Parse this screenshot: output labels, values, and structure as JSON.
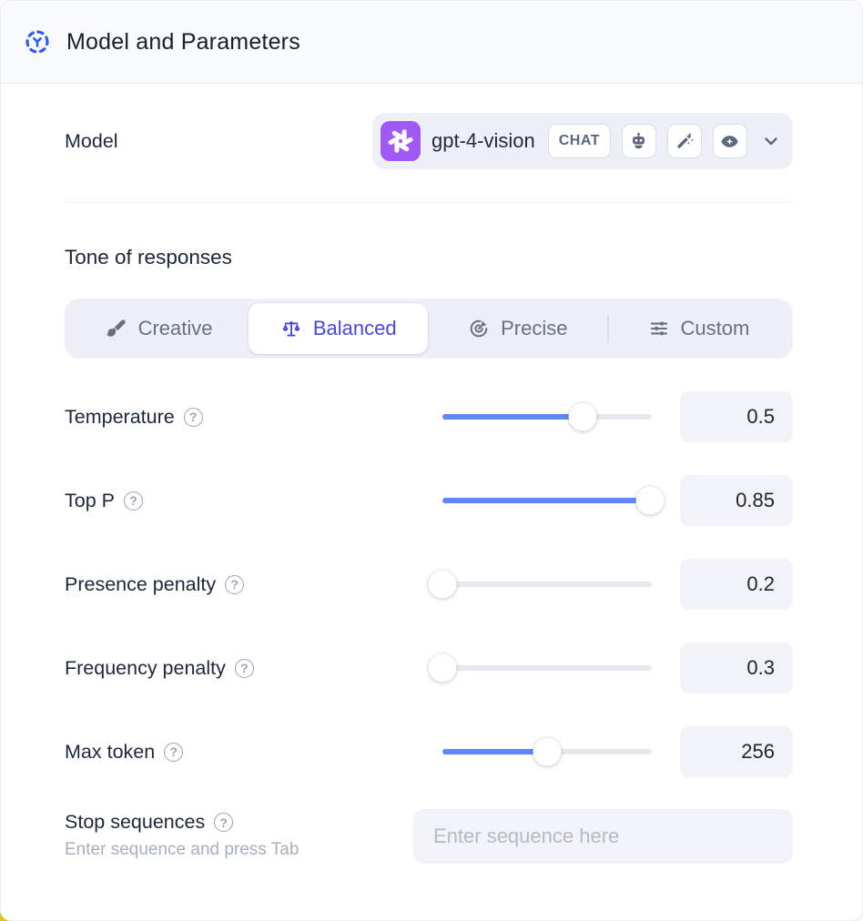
{
  "header": {
    "title": "Model and Parameters"
  },
  "model": {
    "label": "Model",
    "selected_model": "gpt-4-vision",
    "provider": "openai",
    "type_badge": "CHAT",
    "capability_icons": [
      "robot-icon",
      "magic-wand-icon",
      "vision-eye-icon"
    ]
  },
  "tone": {
    "heading": "Tone of responses",
    "options": [
      {
        "label": "Creative",
        "icon": "brush-icon",
        "selected": false
      },
      {
        "label": "Balanced",
        "icon": "scales-icon",
        "selected": true
      },
      {
        "label": "Precise",
        "icon": "target-icon",
        "selected": false
      },
      {
        "label": "Custom",
        "icon": "sliders-icon",
        "selected": false
      }
    ]
  },
  "parameters": [
    {
      "label": "Temperature",
      "value": "0.5",
      "fill_pct": 67
    },
    {
      "label": "Top P",
      "value": "0.85",
      "fill_pct": 99
    },
    {
      "label": "Presence penalty",
      "value": "0.2",
      "fill_pct": 0
    },
    {
      "label": "Frequency penalty",
      "value": "0.3",
      "fill_pct": 0
    },
    {
      "label": "Max token",
      "value": "256",
      "fill_pct": 50
    }
  ],
  "stop_sequences": {
    "label": "Stop sequences",
    "hint": "Enter sequence and press Tab",
    "placeholder": "Enter sequence here",
    "value": ""
  },
  "colors": {
    "accent_blue": "#2d5bf6",
    "selected_indigo": "#4845db",
    "slider_blue": "#6086f5",
    "provider_purple": "#a159f6",
    "header_bg": "#f8fafc",
    "control_bg": "#edf0f6",
    "box_bg": "#f1f3f8",
    "corner_yellow": "#e3c41f"
  }
}
